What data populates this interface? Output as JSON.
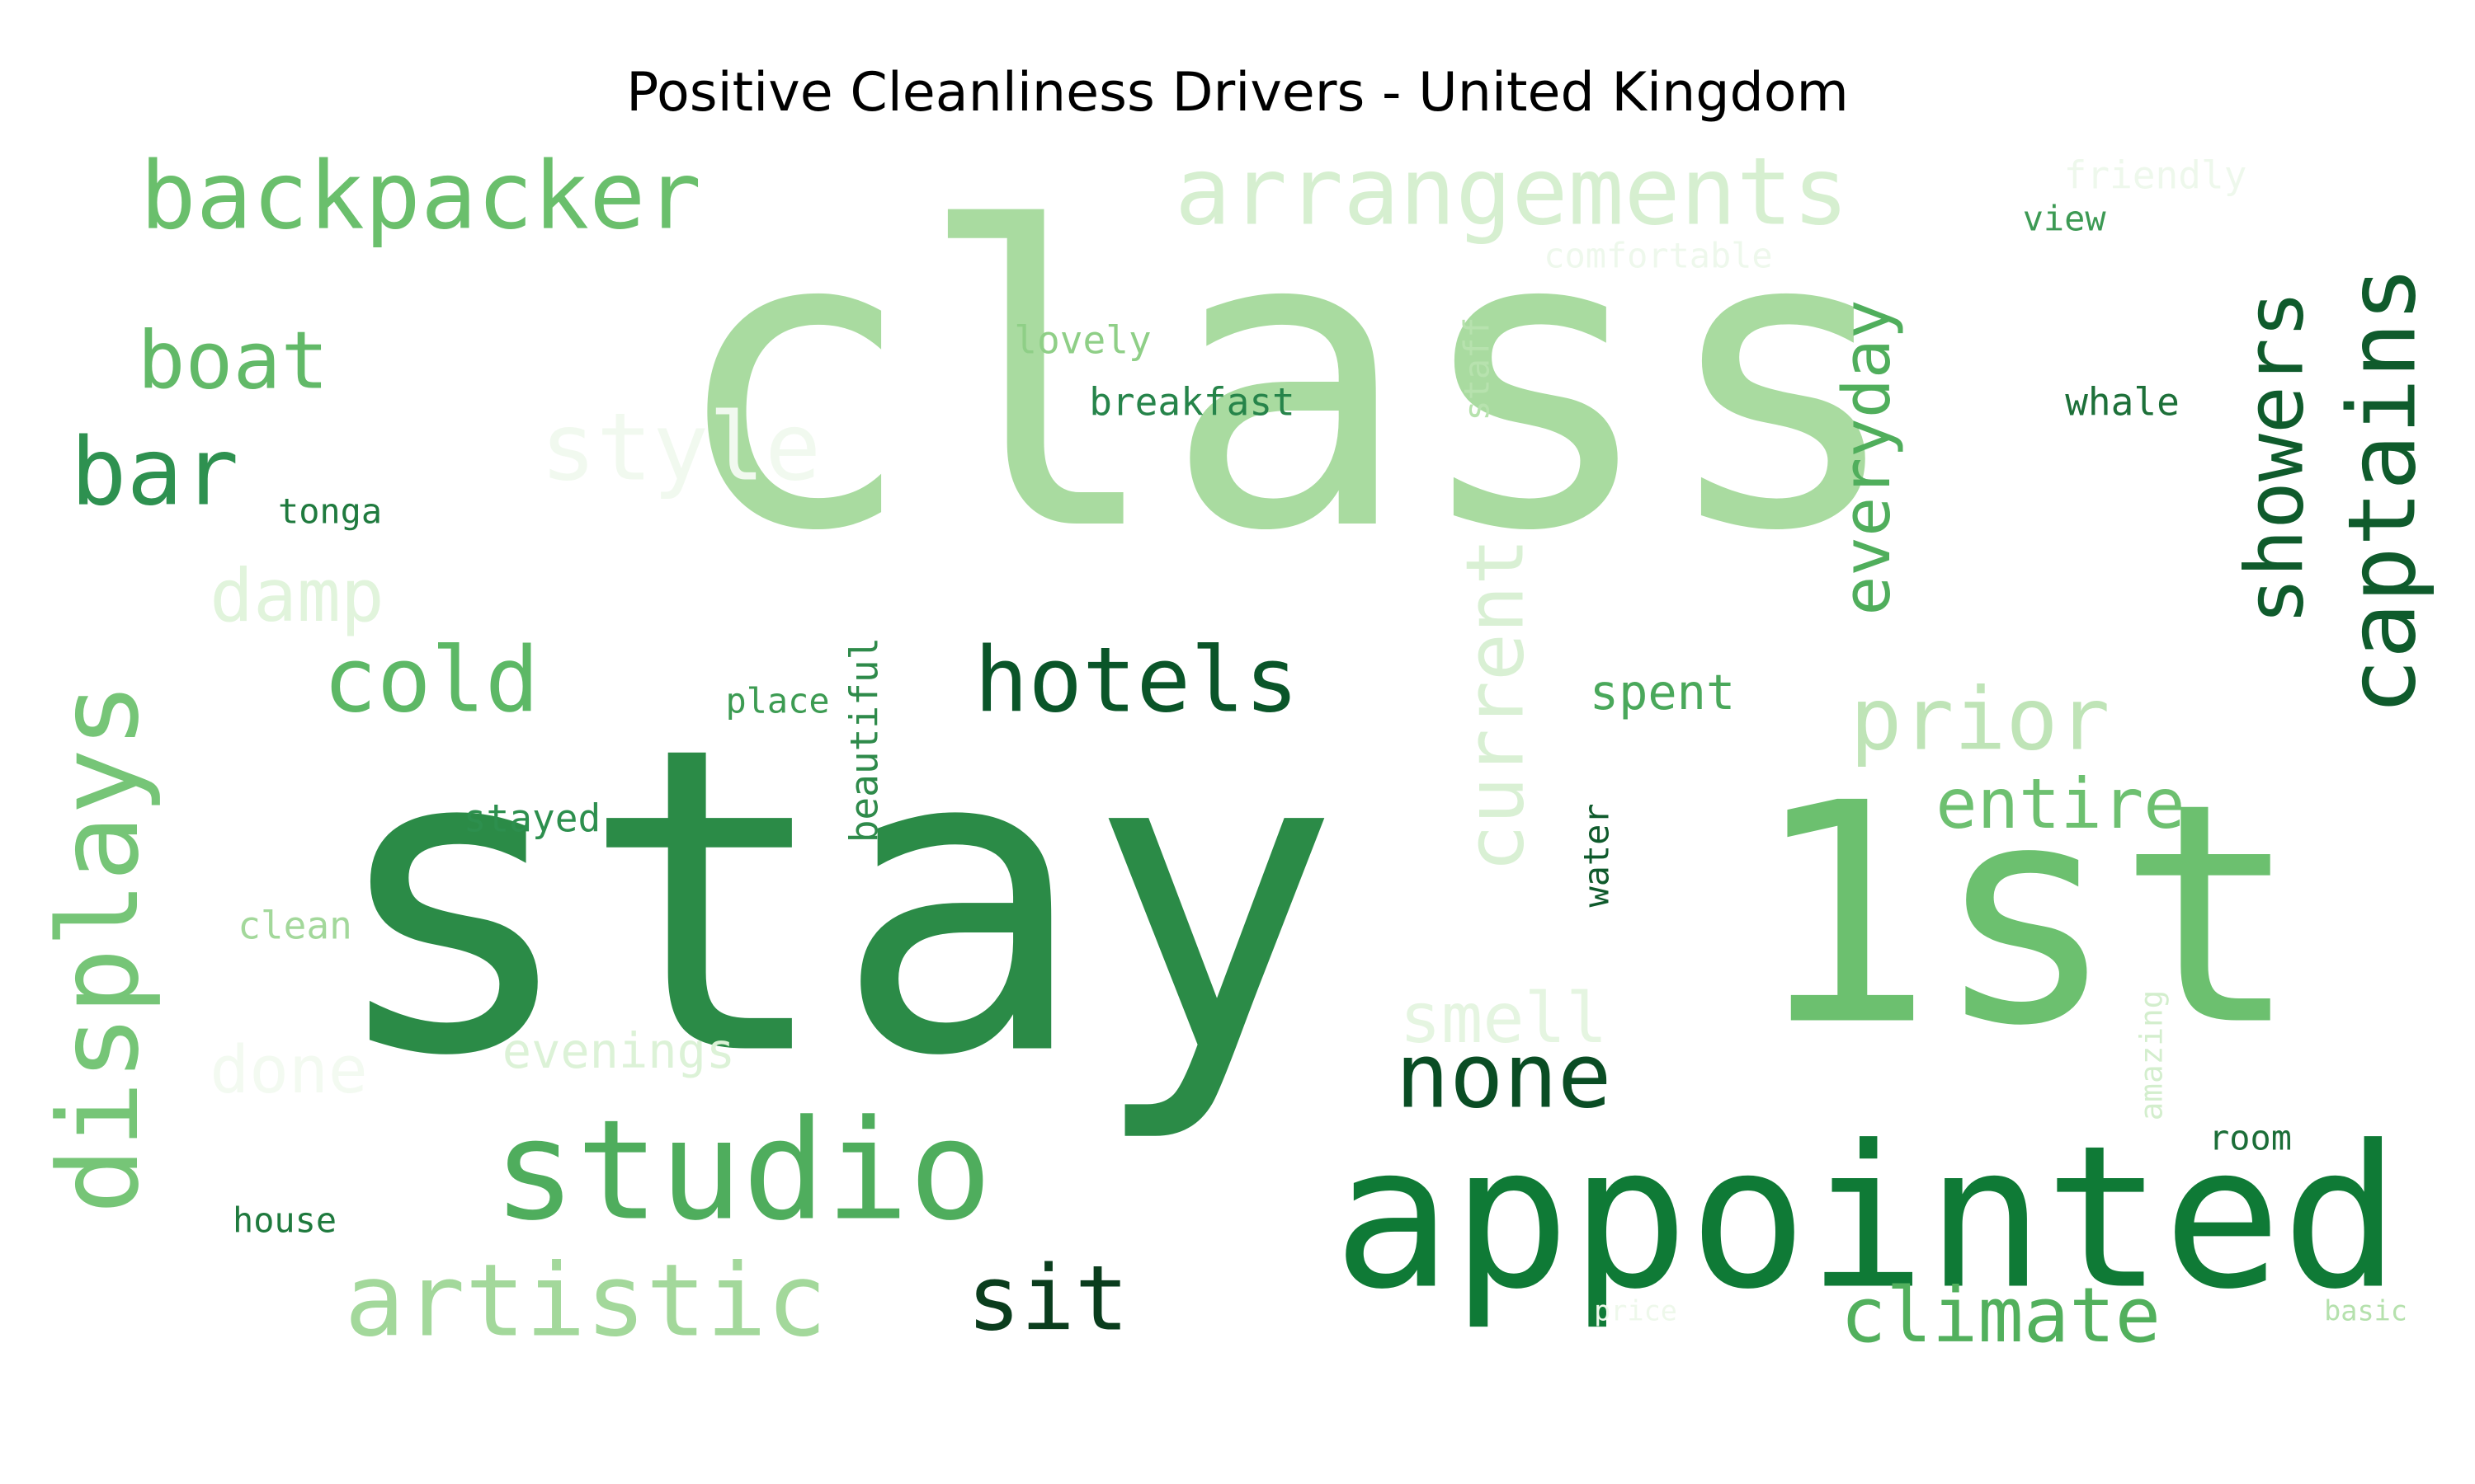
{
  "chart_data": {
    "type": "wordcloud",
    "title": "Positive Cleanliness Drivers - United Kingdom",
    "colormap": "Greens",
    "background": "#ffffff",
    "words": [
      {
        "text": "class",
        "color": "#a9dba0"
      },
      {
        "text": "stay",
        "color": "#2b8b47"
      },
      {
        "text": "1st",
        "color": "#6cc06f"
      },
      {
        "text": "appointed",
        "color": "#0f7a36"
      },
      {
        "text": "studio",
        "color": "#4fad5d"
      },
      {
        "text": "arrangements",
        "color": "#d6efd0"
      },
      {
        "text": "backpacker",
        "color": "#6abf6c"
      },
      {
        "text": "displays",
        "color": "#76c577"
      },
      {
        "text": "hotels",
        "color": "#0a5529"
      },
      {
        "text": "artistic",
        "color": "#a3d89b"
      },
      {
        "text": "none",
        "color": "#0a4d24"
      },
      {
        "text": "captains",
        "color": "#0f5b2c"
      },
      {
        "text": "current",
        "color": "#d9f0d4"
      },
      {
        "text": "prior",
        "color": "#bfe4b7"
      },
      {
        "text": "showers",
        "color": "#0f5b2c"
      },
      {
        "text": "boat",
        "color": "#62b968"
      },
      {
        "text": "bar",
        "color": "#2e9150"
      },
      {
        "text": "style",
        "color": "#f1f9ef"
      },
      {
        "text": "cold",
        "color": "#5db866"
      },
      {
        "text": "sit",
        "color": "#0a3d1d"
      },
      {
        "text": "climate",
        "color": "#52b05d"
      },
      {
        "text": "everyday",
        "color": "#50ae5c"
      },
      {
        "text": "entire",
        "color": "#6dc070"
      },
      {
        "text": "damp",
        "color": "#e1f4dc"
      },
      {
        "text": "smell",
        "color": "#e5f5e1"
      },
      {
        "text": "done",
        "color": "#f3faf1"
      },
      {
        "text": "evenings",
        "color": "#dcf2d7"
      },
      {
        "text": "spent",
        "color": "#4aa85b"
      },
      {
        "text": "stayed",
        "color": "#2d8f4e"
      },
      {
        "text": "place",
        "color": "#3c9b52"
      },
      {
        "text": "breakfast",
        "color": "#26844a"
      },
      {
        "text": "lovely",
        "color": "#8fcf87"
      },
      {
        "text": "tonga",
        "color": "#1f7a3e"
      },
      {
        "text": "view",
        "color": "#3d9a54"
      },
      {
        "text": "whale",
        "color": "#1d7039"
      },
      {
        "text": "beautiful",
        "color": "#2e8a4a"
      },
      {
        "text": "staff",
        "color": "#b7e2ae"
      },
      {
        "text": "water",
        "color": "#0f5a2c"
      },
      {
        "text": "clean",
        "color": "#a3d89b"
      },
      {
        "text": "house",
        "color": "#1f7a3e"
      },
      {
        "text": "room",
        "color": "#1c6e38"
      },
      {
        "text": "amazing",
        "color": "#d3eecd"
      },
      {
        "text": "price",
        "color": "#eef8eb"
      },
      {
        "text": "basic",
        "color": "#b5e1ad"
      },
      {
        "text": "friendly",
        "color": "#eef8ec"
      },
      {
        "text": "comfortable",
        "color": "#eef8ec"
      }
    ]
  }
}
